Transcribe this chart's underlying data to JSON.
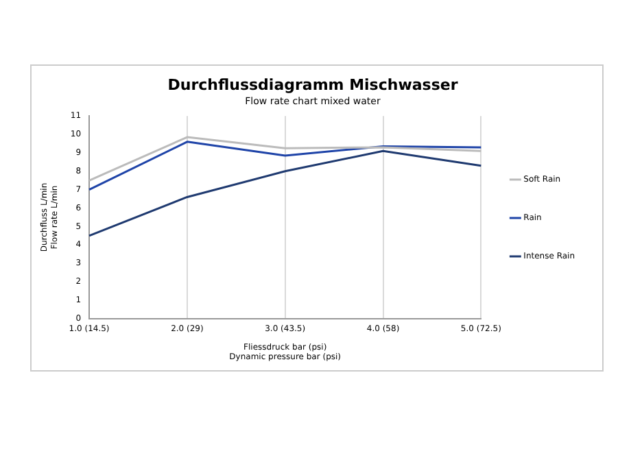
{
  "chart_data": {
    "type": "line",
    "title": "Durchflussdiagramm Mischwasser",
    "subtitle": "Flow rate chart mixed water",
    "xlabel": "Fliessdruck bar (psi)\nDynamic pressure bar (psi)",
    "ylabel": "Durchfluss L/min\nFlow rate L/min",
    "categories": [
      "1.0 (14.5)",
      "2.0 (29)",
      "3.0 (43.5)",
      "4.0 (58)",
      "5.0 (72.5)"
    ],
    "series": [
      {
        "name": "Soft Rain",
        "color": "#bbbbbb",
        "values": [
          7.5,
          9.85,
          9.25,
          9.3,
          9.1
        ]
      },
      {
        "name": "Rain",
        "color": "#1f44a8",
        "values": [
          7.0,
          9.6,
          8.85,
          9.35,
          9.3
        ]
      },
      {
        "name": "Intense Rain",
        "color": "#1f3a70",
        "values": [
          4.5,
          6.6,
          8.0,
          9.1,
          8.3
        ]
      }
    ],
    "ylim": [
      0,
      11
    ],
    "yticks": [
      0,
      1,
      2,
      3,
      4,
      5,
      6,
      7,
      8,
      9,
      10,
      11
    ],
    "grid": "x",
    "legend": "right",
    "marker": "none",
    "line_style": "solid"
  }
}
